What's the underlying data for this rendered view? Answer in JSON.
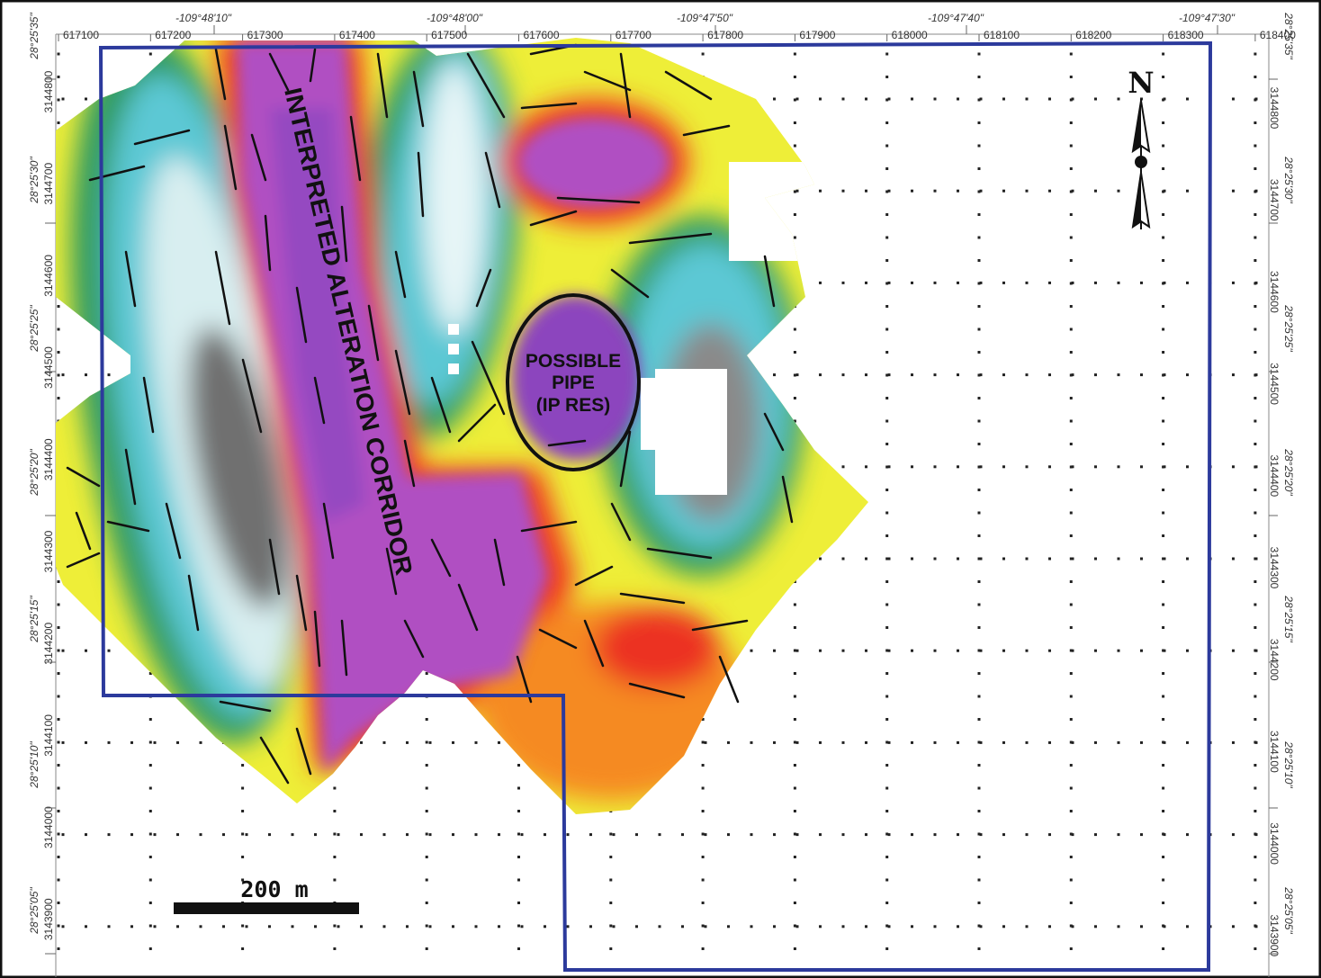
{
  "easting_labels": [
    "617100",
    "617200",
    "617300",
    "617400",
    "617500",
    "617600",
    "617700",
    "617800",
    "617900",
    "618000",
    "618100",
    "618200",
    "618300",
    "618400"
  ],
  "longitude_labels": [
    "-109°48'10\"",
    "-109°48'00\"",
    "-109°47'50\"",
    "-109°47'40\"",
    "-109°47'30\""
  ],
  "northing_labels": [
    "3144800",
    "3144700",
    "3144600",
    "3144500",
    "3144400",
    "3144300",
    "3144200",
    "3144100",
    "3144000",
    "3143900"
  ],
  "latitude_labels": [
    "28°25'35\"",
    "28°25'30\"",
    "28°25'25\"",
    "28°25'20\"",
    "28°25'15\"",
    "28°25'10\"",
    "28°25'05\""
  ],
  "annotations": {
    "corridor_label": "INTERPRETED ALTERATION CORRIDOR",
    "pipe_line1": "POSSIBLE",
    "pipe_line2": "PIPE",
    "pipe_line3": "(IP RES)"
  },
  "north_arrow": {
    "label": "N",
    "icon": "north-arrow-icon"
  },
  "scale_bar": {
    "label": "200 m"
  },
  "colors": {
    "magenta": "#b24fc0",
    "purple": "#7d3fbd",
    "red": "#f0281e",
    "orange": "#f5861f",
    "yellow": "#f2f02a",
    "green": "#2a8a55",
    "cyan": "#59c8d2",
    "grey": "#7a7a7a",
    "boundary": "#2c3a9c"
  }
}
